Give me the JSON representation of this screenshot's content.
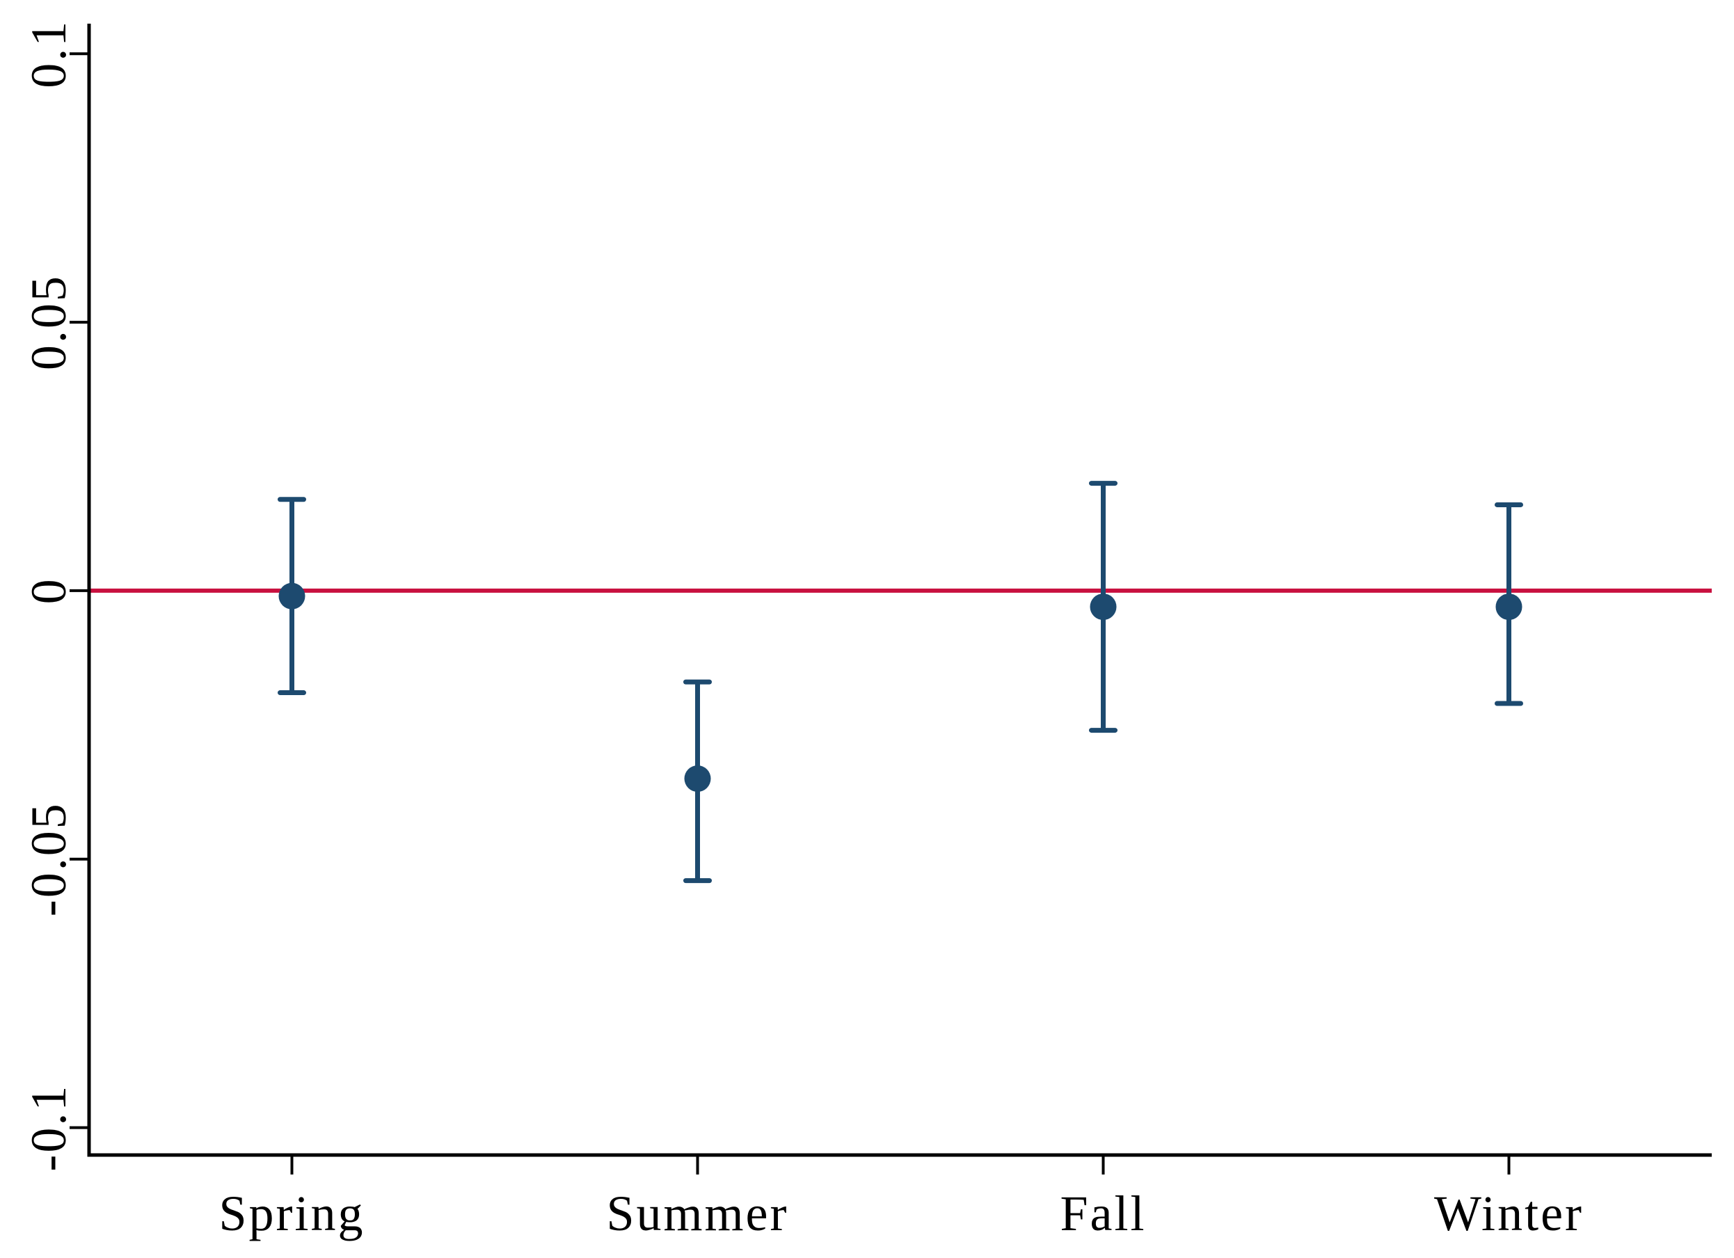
{
  "figure": {
    "background": "#ffffff"
  },
  "chart_data": {
    "type": "scatter",
    "subtype": "coefficient-errorbar-plot",
    "title": "",
    "xlabel": "",
    "ylabel": "",
    "categories": [
      "Spring",
      "Summer",
      "Fall",
      "Winter"
    ],
    "series": [
      {
        "name": "estimate",
        "values": [
          -0.001,
          -0.035,
          -0.003,
          -0.003
        ],
        "ci_low": [
          -0.019,
          -0.054,
          -0.026,
          -0.021
        ],
        "ci_high": [
          0.017,
          -0.017,
          0.02,
          0.016
        ]
      }
    ],
    "ylim": [
      -0.1051,
      0.1056
    ],
    "yticks": [
      {
        "value": 0.1,
        "label": "0.1"
      },
      {
        "value": 0.05,
        "label": "0.05"
      },
      {
        "value": 0,
        "label": "0"
      },
      {
        "value": -0.05,
        "label": "-0.05"
      },
      {
        "value": -0.1,
        "label": "-0.1"
      }
    ],
    "refline": {
      "value": 0,
      "color": "#c8103f"
    },
    "marker_color": "#1d4a6f",
    "axis_color": "#000000",
    "grid": false,
    "legend": false
  }
}
